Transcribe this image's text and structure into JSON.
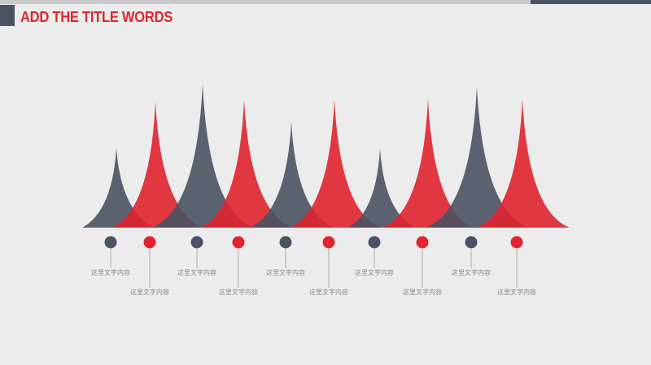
{
  "header": {
    "title": "ADD THE TITLE WORDS"
  },
  "colors": {
    "dark": "#4a5363",
    "red": "#e0242e",
    "background": "#ececec",
    "label": "#8a8a8a"
  },
  "items": [
    {
      "label": "这里文字内容",
      "color": "dark"
    },
    {
      "label": "这里文字内容",
      "color": "red"
    },
    {
      "label": "这里文字内容",
      "color": "dark"
    },
    {
      "label": "这里文字内容",
      "color": "red"
    },
    {
      "label": "这里文字内容",
      "color": "dark"
    },
    {
      "label": "这里文字内容",
      "color": "red"
    },
    {
      "label": "这里文字内容",
      "color": "dark"
    },
    {
      "label": "这里文字内容",
      "color": "red"
    },
    {
      "label": "这里文字内容",
      "color": "dark"
    },
    {
      "label": "这里文字内容",
      "color": "red"
    }
  ]
}
